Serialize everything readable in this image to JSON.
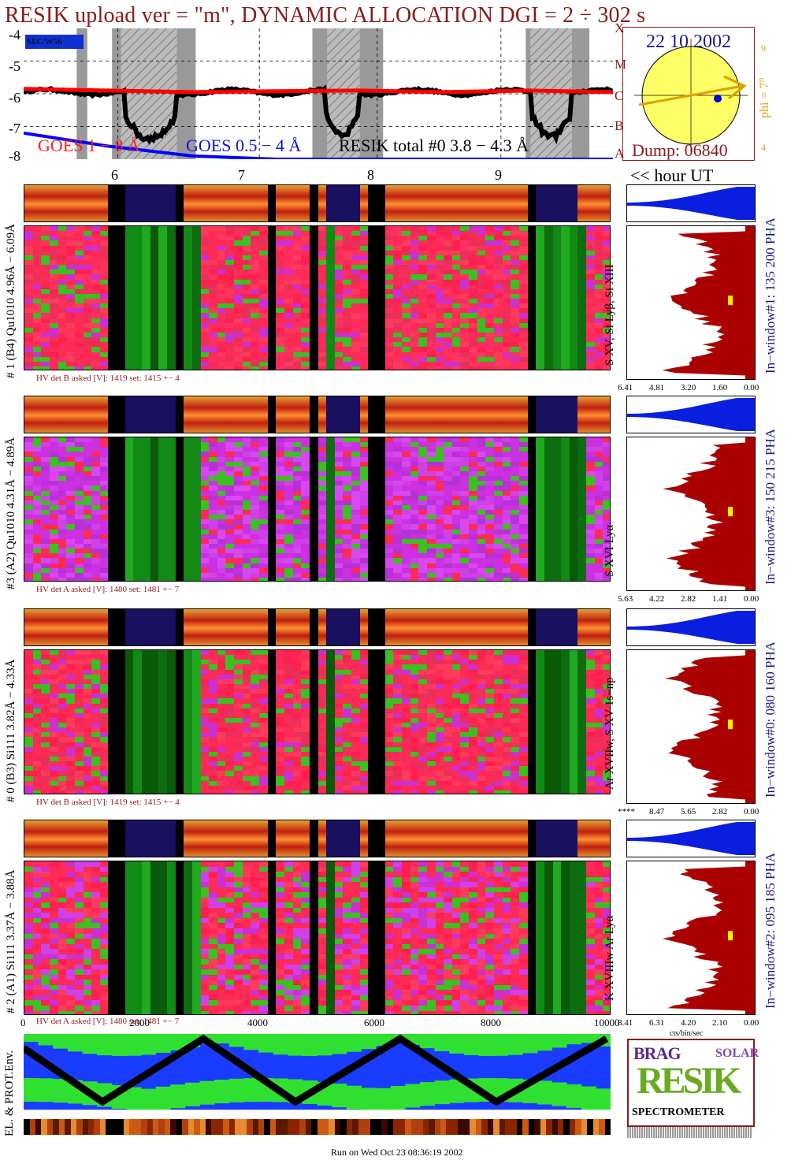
{
  "title": "RESIK upload ver = \"m\", DYNAMIC ALLOCATION  DGI =   2 ÷ 302 s",
  "goes": {
    "yticks": [
      "-4",
      "-5",
      "-6",
      "-7",
      "-8"
    ],
    "classes": [
      "X",
      "M",
      "C",
      "B",
      "A"
    ],
    "legend_small": "SEC/W56",
    "label_goes1": "GOES 1 − 8 Å",
    "label_goes2": "GOES 0.5 − 4 Å",
    "label_resik": "RESIK total #0  3.8 − 4.3 Å",
    "hour_ticks": [
      "6",
      "7",
      "8",
      "9"
    ],
    "hour_label": "<< hour UT"
  },
  "sun": {
    "date": "22 10 2002",
    "dump": "Dump: 06840",
    "phi_label": "phi =  7°",
    "phi_ticks": [
      "4",
      "9"
    ]
  },
  "panels": [
    {
      "id": "p1",
      "label": "# 1 (B4) Qu1010 4.96Å − 6.09Å",
      "line_label": "S XV, Si Lyβ, Si XIII",
      "side_label": "In−window#1:  135 200 PHA",
      "hv": "HV det B asked [V]:  1419 set:  1415  +−   4",
      "xticks": [
        "6.41",
        "4.81",
        "3.20",
        "1.60",
        "0.00"
      ]
    },
    {
      "id": "p3",
      "label": "#3 (A2) Qu1010  4.31Å − 4.89Å",
      "line_label": "S XVI Lyα",
      "side_label": "In−window#3:  150 215 PHA",
      "hv": "HV det A asked [V]:  1480 set:  1481  +−   7",
      "xticks": [
        "5.63",
        "4.22",
        "2.82",
        "1.41",
        "0.00"
      ]
    },
    {
      "id": "p0",
      "label": "# 0 (B3) Si111  3.82Å − 4.33Å",
      "line_label": "Ar XVIIw, S XV 1s−np",
      "side_label": "In−window#0:  080 160 PHA",
      "hv": "HV det B asked [V]:  1419 set:  1415  +−   4",
      "xticks": [
        "****",
        "8.47",
        "5.65",
        "2.82",
        "0.00"
      ]
    },
    {
      "id": "p2",
      "label": "# 2 (A1) Si111  3.37Å − 3.88Å",
      "line_label": "K XVIIIw  Ar Lyα",
      "side_label": "In−window#2:  095 185 PHA",
      "hv": "HV det A asked [V]:  1480 set:  1481  +−   7",
      "xticks": [
        "8.41",
        "6.31",
        "4.20",
        "2.10",
        "0.00"
      ],
      "xunit": "cts/bin/sec"
    }
  ],
  "bottom_axis": {
    "ticks": [
      "0",
      "2000",
      "4000",
      "6000",
      "8000",
      "10000"
    ]
  },
  "env_label": "EL. & PROT.Env.",
  "logo": {
    "top": "BRAG",
    "mid": "RESIK",
    "side": "SOLAR",
    "bottom": "SPECTROMETER"
  },
  "footer": "Run on Wed Oct 23 08:36:19 2002",
  "colors": {
    "title": "#8b1a1a",
    "goes1": "#ff0000",
    "goes2": "#0000ff",
    "blue_panel": "#1a1a8b",
    "sun": "#ffff66",
    "phi": "#e0a000",
    "histogram": "#aa0000"
  },
  "chart_data": {
    "type": "line",
    "yscale": "log",
    "ylim": [
      -8,
      -4
    ],
    "hour_ticks": [
      "6",
      "7",
      "8",
      "9"
    ],
    "series": [
      {
        "name": "GOES 1 − 8 Å",
        "values": [
          -5.85,
          -5.9,
          -5.95,
          -5.92,
          -5.9,
          -5.95,
          -5.9,
          -5.95
        ]
      },
      {
        "name": "GOES 0.5 − 4 Å",
        "values": [
          -7.2,
          -7.6,
          -7.9,
          -8.0,
          -8.0,
          -8.0,
          -8.0,
          -8.0
        ]
      }
    ]
  }
}
